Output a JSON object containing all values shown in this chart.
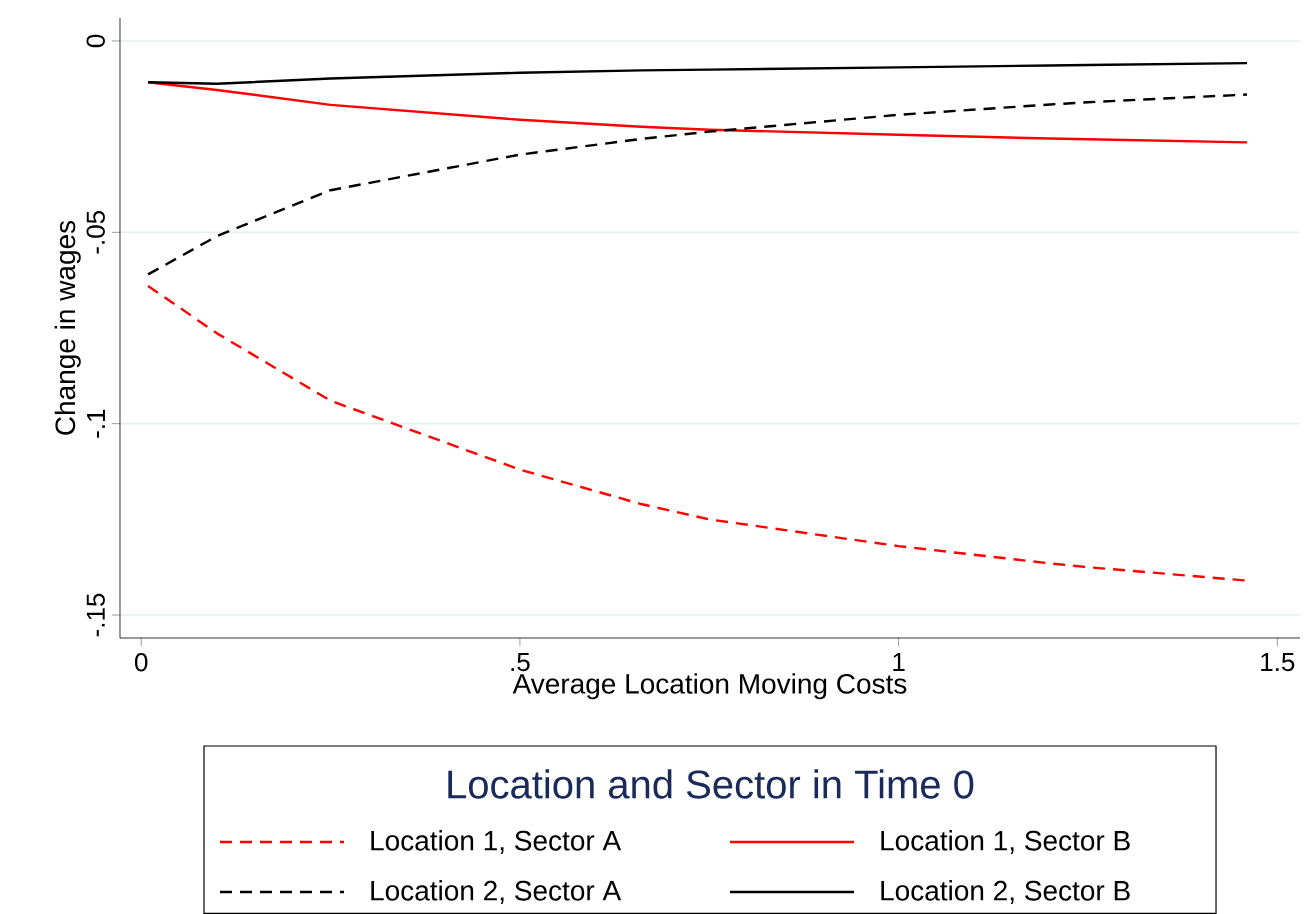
{
  "chart_data": {
    "type": "line",
    "xlabel": "Average Location Moving Costs",
    "ylabel": "Change in wages",
    "legend_title": "Location and Sector in Time 0",
    "x": [
      0.009,
      0.1,
      0.25,
      0.5,
      0.66,
      0.75,
      1,
      1.2,
      1.25,
      1.46
    ],
    "series": [
      {
        "name": "Location 1, Sector A",
        "color": "#ff0000",
        "line_style": "dashed",
        "values": [
          -0.064,
          -0.0764,
          -0.094,
          -0.112,
          -0.121,
          -0.125,
          -0.132,
          -0.1365,
          -0.1375,
          -0.141
        ]
      },
      {
        "name": "Location 1, Sector B",
        "color": "#ff0000",
        "line_style": "solid",
        "values": [
          -0.0108,
          -0.0128,
          -0.0167,
          -0.0206,
          -0.0224,
          -0.0232,
          -0.0245,
          -0.0255,
          -0.0257,
          -0.0265
        ]
      },
      {
        "name": "Location 2, Sector A",
        "color": "#000000",
        "line_style": "dashed",
        "values": [
          -0.061,
          -0.051,
          -0.039,
          -0.0297,
          -0.0256,
          -0.0237,
          -0.0193,
          -0.0166,
          -0.016,
          -0.014
        ]
      },
      {
        "name": "Location 2, Sector B",
        "color": "#000000",
        "line_style": "solid",
        "values": [
          -0.0108,
          -0.0112,
          -0.0098,
          -0.0083,
          -0.0077,
          -0.0075,
          -0.0069,
          -0.0064,
          -0.0063,
          -0.0058
        ]
      }
    ],
    "xlim": [
      -0.028,
      1.53
    ],
    "ylim": [
      -0.156,
      0.006
    ],
    "xticks": [
      0,
      {
        "value": 0.5,
        "label": ".5"
      },
      1,
      1.5
    ],
    "yticks": [
      0,
      {
        "value": -0.05,
        "label": "-.05"
      },
      {
        "value": -0.1,
        "label": "-.1"
      },
      {
        "value": -0.15,
        "label": "-.15"
      }
    ],
    "grid": "y",
    "legend": "bottom",
    "marker": "none"
  }
}
